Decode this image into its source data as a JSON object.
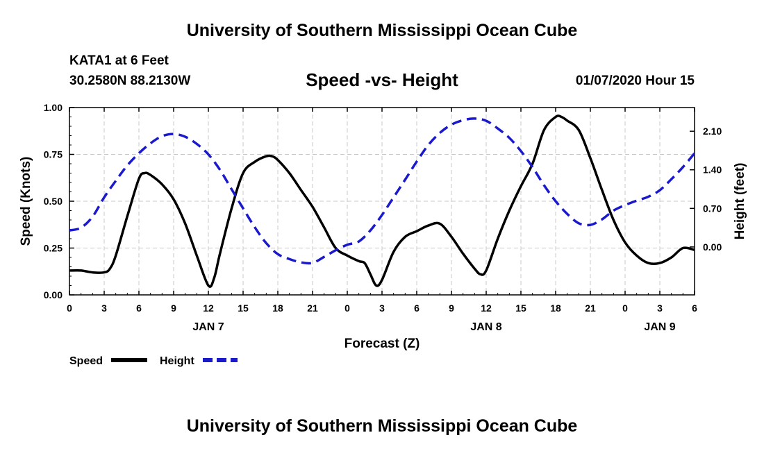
{
  "header": {
    "title": "University of Southern Mississippi Ocean Cube",
    "station": "KATA1 at 6 Feet",
    "coords": "30.2580N 88.2130W",
    "plot_title": "Speed -vs- Height",
    "timestamp": "01/07/2020 Hour 15"
  },
  "footer": {
    "title": "University of Southern Mississippi Ocean Cube"
  },
  "colors": {
    "speed": "#000000",
    "height": "#1a1acc",
    "grid": "#c8c8c8"
  },
  "chart_data": {
    "type": "line",
    "title": "Speed -vs- Height",
    "xlabel": "Forecast (Z)",
    "ylabel": "Speed (Knots)",
    "ylabel_right": "Height (feet)",
    "x_range": [
      0,
      54
    ],
    "x_ticks": [
      0,
      3,
      6,
      9,
      12,
      15,
      18,
      21,
      24,
      27,
      30,
      33,
      36,
      39,
      42,
      45,
      48,
      51,
      54
    ],
    "x_tick_labels": [
      "0",
      "3",
      "6",
      "9",
      "12",
      "15",
      "18",
      "21",
      "0",
      "3",
      "6",
      "9",
      "12",
      "15",
      "18",
      "21",
      "0",
      "3",
      "6"
    ],
    "day_labels": [
      {
        "x": 12,
        "label": "JAN 7"
      },
      {
        "x": 36,
        "label": "JAN 8"
      },
      {
        "x": 51,
        "label": "JAN 9"
      }
    ],
    "y_left": {
      "range": [
        0,
        1.0
      ],
      "ticks": [
        0,
        0.25,
        0.5,
        0.75,
        1.0
      ],
      "tick_labels": [
        "0.00",
        "0.25",
        "0.50",
        "0.75",
        "1.00"
      ]
    },
    "y_right": {
      "range": [
        -0.87,
        2.53
      ],
      "ticks": [
        0,
        0.7,
        1.4,
        2.1
      ],
      "tick_labels": [
        "0.00",
        "0.70",
        "1.40",
        "2.10"
      ]
    },
    "series": [
      {
        "name": "Speed",
        "axis": "left",
        "style": "solid",
        "x": [
          0,
          1,
          2,
          3,
          3.5,
          4,
          5,
          6,
          6.5,
          7,
          8,
          9,
          10,
          11,
          12,
          12.5,
          13,
          14,
          15,
          16,
          17,
          17.5,
          18,
          19,
          20,
          21,
          22,
          23,
          24,
          25,
          25.5,
          26,
          26.5,
          27,
          28,
          29,
          30,
          31,
          32,
          33,
          34,
          35,
          35.5,
          36,
          37,
          38,
          39,
          40,
          41,
          42,
          42.5,
          43,
          44,
          45,
          46,
          47,
          48,
          49,
          50,
          51,
          52,
          53,
          54
        ],
        "values": [
          0.13,
          0.13,
          0.12,
          0.12,
          0.14,
          0.21,
          0.42,
          0.62,
          0.65,
          0.64,
          0.59,
          0.51,
          0.38,
          0.21,
          0.05,
          0.09,
          0.22,
          0.46,
          0.65,
          0.71,
          0.74,
          0.74,
          0.72,
          0.65,
          0.56,
          0.47,
          0.36,
          0.25,
          0.21,
          0.18,
          0.17,
          0.11,
          0.05,
          0.08,
          0.23,
          0.31,
          0.34,
          0.37,
          0.38,
          0.31,
          0.22,
          0.14,
          0.11,
          0.13,
          0.3,
          0.45,
          0.58,
          0.7,
          0.88,
          0.95,
          0.95,
          0.93,
          0.88,
          0.73,
          0.56,
          0.4,
          0.28,
          0.21,
          0.17,
          0.17,
          0.2,
          0.25,
          0.24
        ]
      },
      {
        "name": "Height",
        "axis": "right",
        "style": "dashed",
        "x": [
          0,
          1,
          2,
          3,
          4,
          5,
          6,
          7,
          8,
          9,
          10,
          11,
          12,
          13,
          14,
          15,
          16,
          17,
          18,
          19,
          20,
          21,
          22,
          23,
          24,
          25,
          26,
          27,
          28,
          29,
          30,
          31,
          32,
          33,
          34,
          35,
          36,
          37,
          38,
          39,
          40,
          41,
          42,
          43,
          44,
          45,
          46,
          47,
          48,
          49,
          50,
          51,
          52,
          53,
          54
        ],
        "values": [
          0.3,
          0.35,
          0.55,
          0.9,
          1.2,
          1.48,
          1.7,
          1.88,
          2.01,
          2.05,
          2.0,
          1.87,
          1.68,
          1.4,
          1.05,
          0.7,
          0.36,
          0.07,
          -0.13,
          -0.22,
          -0.28,
          -0.29,
          -0.18,
          -0.06,
          0.04,
          0.1,
          0.3,
          0.58,
          0.9,
          1.22,
          1.55,
          1.85,
          2.07,
          2.22,
          2.3,
          2.33,
          2.29,
          2.15,
          1.98,
          1.74,
          1.45,
          1.12,
          0.83,
          0.6,
          0.43,
          0.4,
          0.5,
          0.66,
          0.76,
          0.84,
          0.91,
          1.03,
          1.23,
          1.45,
          1.7
        ]
      }
    ],
    "legend": [
      {
        "label": "Speed",
        "style": "solid"
      },
      {
        "label": "Height",
        "style": "dashed"
      }
    ]
  }
}
